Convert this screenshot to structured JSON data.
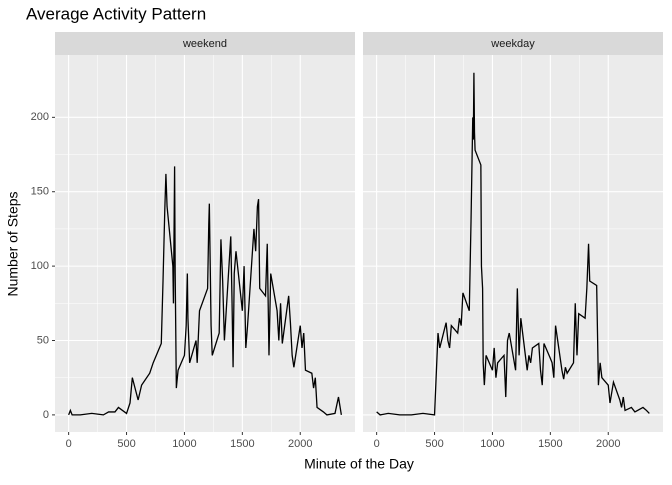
{
  "chart_data": {
    "type": "line",
    "title": "Average Activity Pattern",
    "x_label": "Minute of the Day",
    "y_label": "Number of Steps",
    "color": "#000000",
    "grid": true,
    "xlim": [
      -117.75,
      2472.75
    ],
    "xticks": [
      0,
      500,
      1000,
      1500,
      2000
    ],
    "ylim": [
      -11.5,
      241.9
    ],
    "yticks": [
      0,
      50,
      100,
      150,
      200
    ],
    "panels": [
      {
        "strip": "weekend",
        "x": [
          0,
          15,
          30,
          100,
          200,
          300,
          345,
          400,
          430,
          500,
          530,
          550,
          600,
          630,
          700,
          730,
          800,
          815,
          830,
          840,
          850,
          900,
          905,
          915,
          920,
          930,
          945,
          1000,
          1015,
          1025,
          1030,
          1045,
          1100,
          1110,
          1130,
          1200,
          1210,
          1215,
          1230,
          1240,
          1300,
          1315,
          1330,
          1345,
          1400,
          1410,
          1420,
          1430,
          1445,
          1500,
          1515,
          1530,
          1545,
          1600,
          1615,
          1630,
          1640,
          1650,
          1700,
          1715,
          1730,
          1745,
          1800,
          1815,
          1830,
          1845,
          1900,
          1915,
          1930,
          1945,
          2000,
          2015,
          2030,
          2045,
          2100,
          2115,
          2130,
          2145,
          2200,
          2230,
          2300,
          2330,
          2355
        ],
        "values": [
          0,
          3,
          0,
          0,
          1,
          0,
          2,
          2,
          5,
          1,
          8,
          25,
          10,
          20,
          28,
          35,
          48,
          90,
          137,
          162,
          140,
          100,
          75,
          167,
          95,
          18,
          30,
          40,
          60,
          95,
          65,
          35,
          50,
          35,
          70,
          85,
          128,
          142,
          60,
          40,
          55,
          118,
          90,
          50,
          120,
          80,
          32,
          95,
          110,
          70,
          100,
          45,
          60,
          125,
          110,
          140,
          145,
          85,
          80,
          115,
          40,
          95,
          70,
          50,
          75,
          48,
          80,
          62,
          40,
          32,
          60,
          45,
          55,
          30,
          28,
          18,
          25,
          5,
          2,
          0,
          1,
          12,
          0
        ]
      },
      {
        "strip": "weekday",
        "x": [
          0,
          30,
          100,
          200,
          300,
          400,
          500,
          530,
          545,
          600,
          615,
          630,
          645,
          700,
          715,
          730,
          745,
          800,
          815,
          830,
          835,
          840,
          845,
          850,
          900,
          905,
          915,
          920,
          930,
          945,
          1000,
          1015,
          1030,
          1045,
          1100,
          1115,
          1130,
          1145,
          1200,
          1215,
          1230,
          1245,
          1300,
          1315,
          1330,
          1345,
          1400,
          1415,
          1430,
          1445,
          1500,
          1515,
          1530,
          1545,
          1600,
          1615,
          1630,
          1645,
          1700,
          1715,
          1730,
          1745,
          1800,
          1815,
          1830,
          1840,
          1900,
          1915,
          1930,
          1945,
          2000,
          2015,
          2030,
          2045,
          2100,
          2115,
          2130,
          2145,
          2200,
          2230,
          2300,
          2330,
          2355
        ],
        "values": [
          2,
          0,
          1,
          0,
          0,
          1,
          0,
          55,
          45,
          62,
          50,
          45,
          60,
          55,
          65,
          60,
          82,
          70,
          130,
          200,
          185,
          230,
          190,
          178,
          168,
          100,
          85,
          35,
          20,
          40,
          30,
          45,
          25,
          35,
          40,
          12,
          50,
          55,
          30,
          85,
          40,
          65,
          30,
          40,
          35,
          45,
          48,
          30,
          20,
          48,
          38,
          35,
          25,
          60,
          30,
          24,
          32,
          28,
          35,
          75,
          40,
          68,
          65,
          85,
          115,
          90,
          87,
          20,
          35,
          25,
          20,
          8,
          15,
          22,
          10,
          5,
          12,
          3,
          5,
          2,
          5,
          3,
          1
        ]
      }
    ]
  }
}
